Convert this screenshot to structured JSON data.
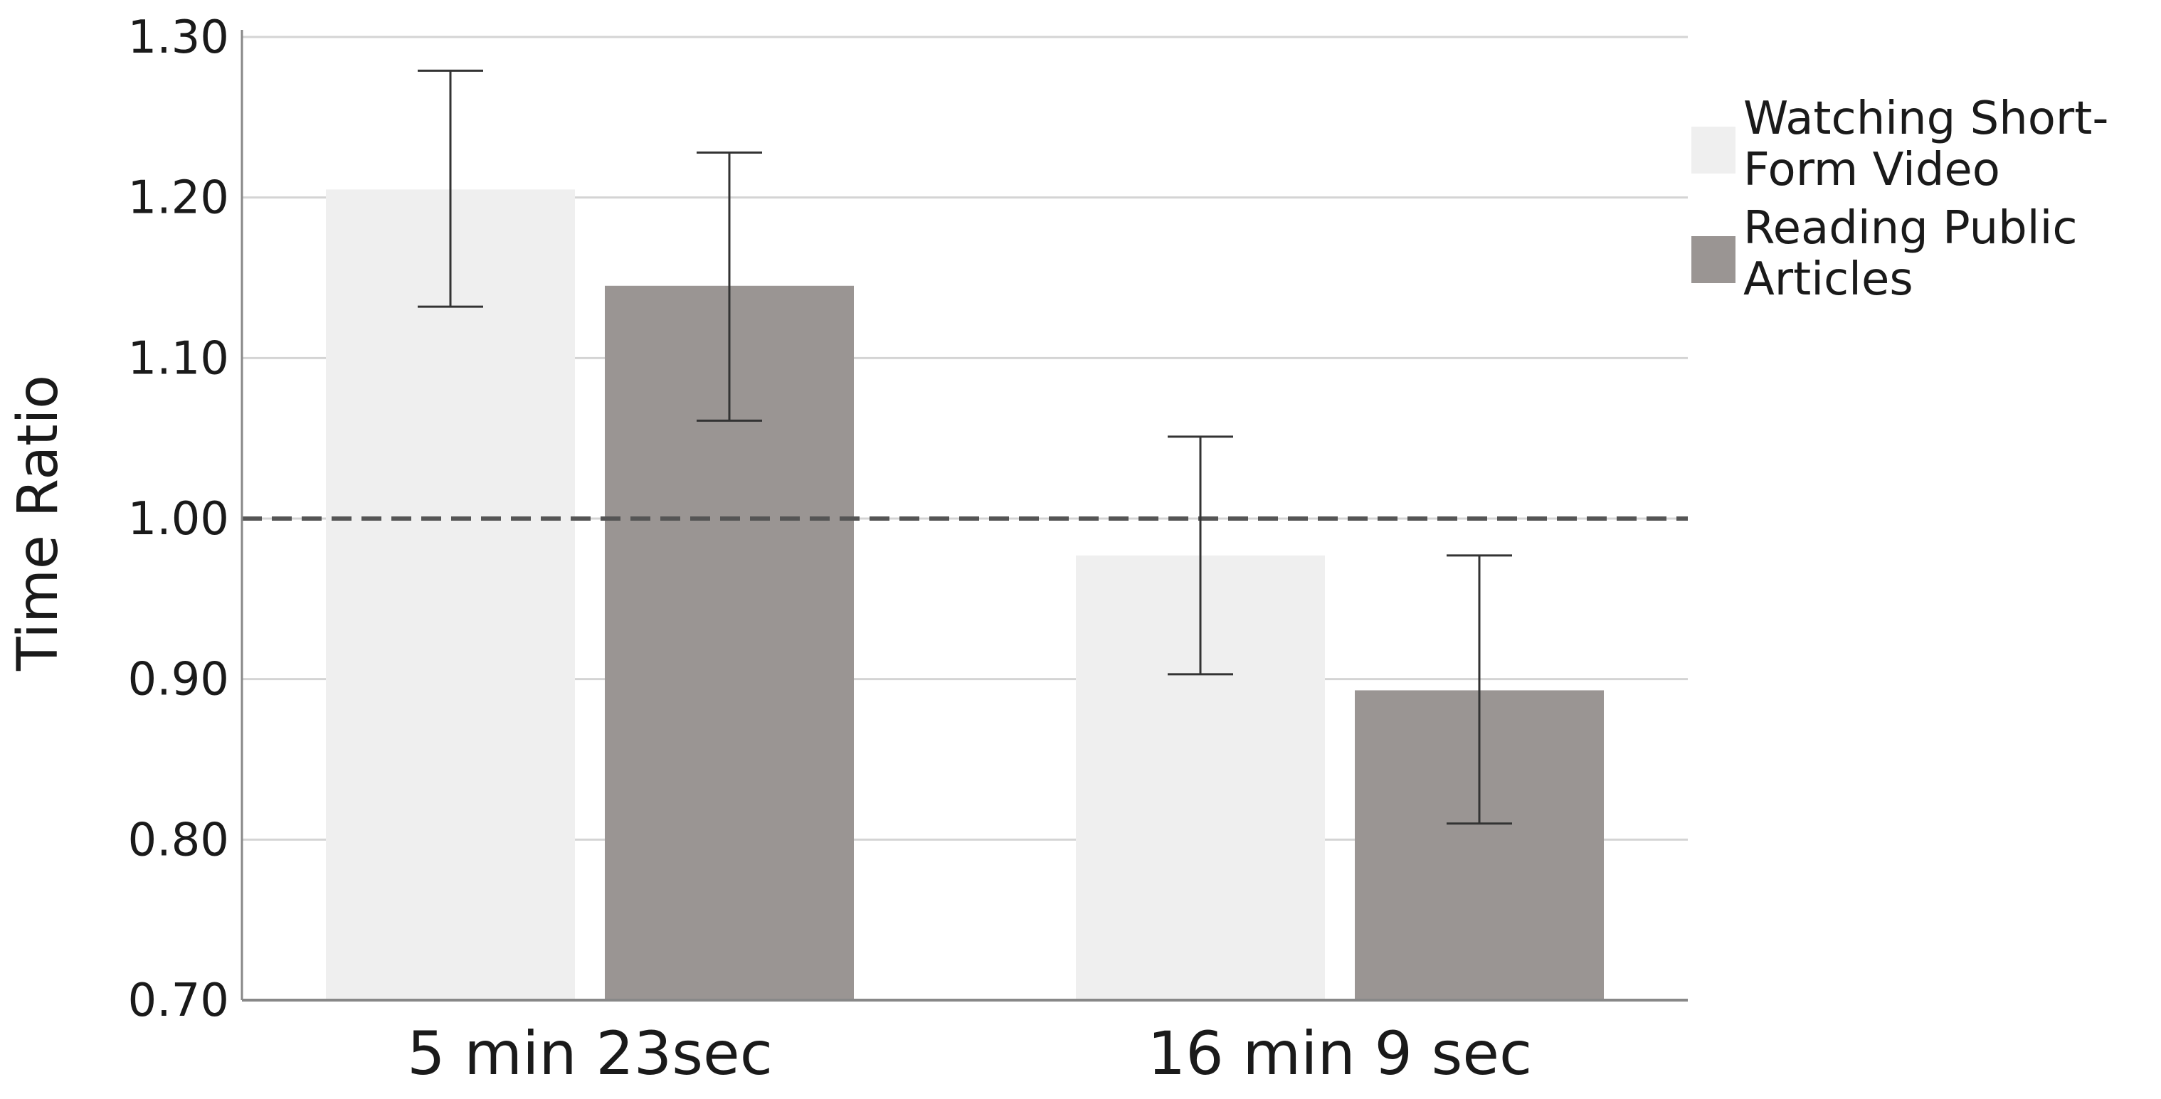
{
  "chart_data": {
    "type": "bar",
    "ylabel": "Time Ratio",
    "xlabel": "",
    "categories": [
      "5 min 23sec",
      "16 min 9 sec"
    ],
    "series": [
      {
        "name": "Watching Short-Form Video",
        "legend_lines": [
          "Watching Short-",
          "Form Video"
        ],
        "color": "#efefef",
        "values": [
          1.205,
          0.977
        ],
        "error_low": [
          1.132,
          0.903
        ],
        "error_high": [
          1.279,
          1.051
        ]
      },
      {
        "name": "Reading Public Articles",
        "legend_lines": [
          "Reading Public",
          "Articles"
        ],
        "color": "#9a9593",
        "values": [
          1.145,
          0.893
        ],
        "error_low": [
          1.061,
          0.81
        ],
        "error_high": [
          1.228,
          0.977
        ]
      }
    ],
    "ylim": [
      0.7,
      1.3
    ],
    "yticks": [
      "0.70",
      "0.80",
      "0.90",
      "1.00",
      "1.10",
      "1.20",
      "1.30"
    ],
    "reference_line": 1.0,
    "grid": true,
    "legend_position": "right-top"
  }
}
